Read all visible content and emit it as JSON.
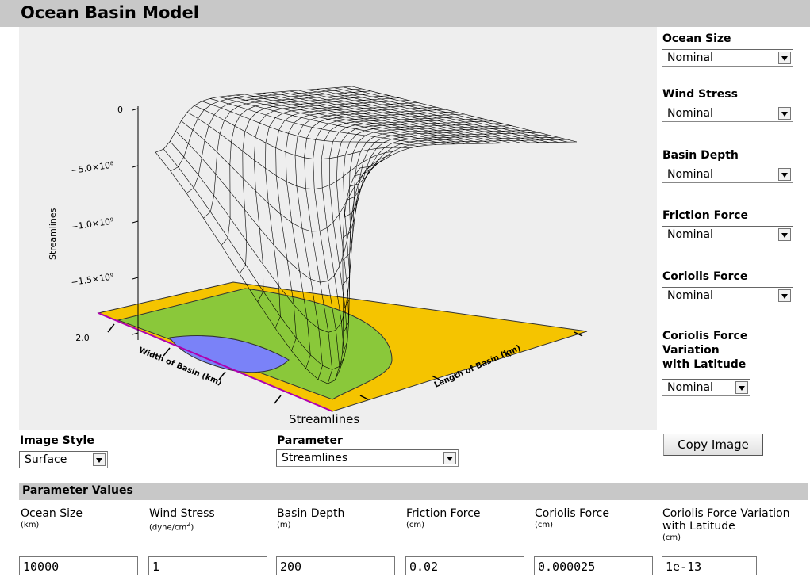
{
  "app": {
    "title": "Ocean Basin Model"
  },
  "plot": {
    "title": "Streamlines",
    "z_axis_label": "Streamlines",
    "z_ticks": [
      "0",
      "−5.0×10⁸",
      "−1.0×10⁹",
      "−1.5×10⁹",
      "−2.0"
    ],
    "x_axis_label": "Length of Basin (km)",
    "y_axis_label": "Width of Basin (km)",
    "colors": {
      "orange": "#f5c400",
      "green": "#8ac83a",
      "blue": "#7a82f8",
      "mesh": "#000000"
    }
  },
  "controls": {
    "ocean_size": {
      "label": "Ocean Size",
      "value": "Nominal"
    },
    "wind_stress": {
      "label": "Wind Stress",
      "value": "Nominal"
    },
    "basin_depth": {
      "label": "Basin Depth",
      "value": "Nominal"
    },
    "friction_force": {
      "label": "Friction Force",
      "value": "Nominal"
    },
    "coriolis_force": {
      "label": "Coriolis Force",
      "value": "Nominal"
    },
    "coriolis_variation": {
      "label_line1": "Coriolis Force",
      "label_line2": "Variation",
      "label_line3": "with Latitude",
      "value": "Nominal"
    }
  },
  "image_style": {
    "label": "Image Style",
    "value": "Surface"
  },
  "parameter": {
    "label": "Parameter",
    "value": "Streamlines"
  },
  "copy_button": {
    "label": "Copy Image"
  },
  "parameter_values": {
    "header": "Parameter Values",
    "columns": [
      {
        "name": "Ocean Size",
        "unit": "(km)",
        "value": "10000"
      },
      {
        "name": "Wind Stress",
        "unit": "(dyne/cm",
        "unit_sup": "2",
        "unit_end": ")",
        "value": "1"
      },
      {
        "name": "Basin Depth",
        "unit": "(m)",
        "value": "200"
      },
      {
        "name": "Friction Force",
        "unit": "(cm)",
        "value": "0.02"
      },
      {
        "name": "Coriolis Force",
        "unit": "(cm)",
        "value": "0.000025"
      },
      {
        "name": "Coriolis Force Variation",
        "name2": "with Latitude",
        "unit": "(cm)",
        "value": "1e-13"
      }
    ]
  }
}
